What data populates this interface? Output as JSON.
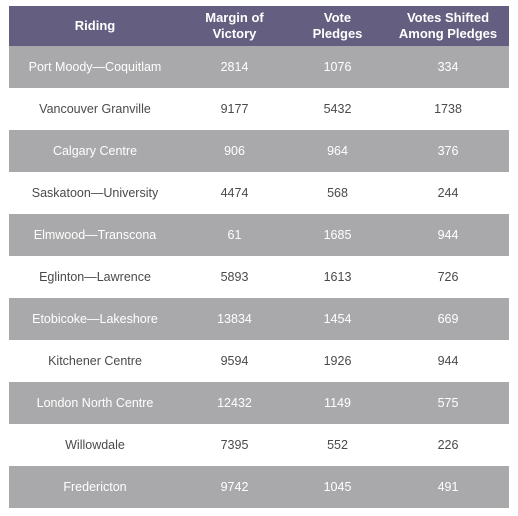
{
  "table": {
    "headers": [
      "Riding",
      "Margin of\nVictory",
      "Vote\nPledges",
      "Votes Shifted\nAmong Pledges"
    ],
    "rows": [
      [
        "Port Moody—Coquitlam",
        "2814",
        "1076",
        "334"
      ],
      [
        "Vancouver Granville",
        "9177",
        "5432",
        "1738"
      ],
      [
        "Calgary Centre",
        "906",
        "964",
        "376"
      ],
      [
        "Saskatoon—University",
        "4474",
        "568",
        "244"
      ],
      [
        "Elmwood—Transcona",
        "61",
        "1685",
        "944"
      ],
      [
        "Eglinton—Lawrence",
        "5893",
        "1613",
        "726"
      ],
      [
        "Etobicoke—Lakeshore",
        "13834",
        "1454",
        "669"
      ],
      [
        "Kitchener Centre",
        "9594",
        "1926",
        "944"
      ],
      [
        "London North Centre",
        "12432",
        "1149",
        "575"
      ],
      [
        "Willowdale",
        "7395",
        "552",
        "226"
      ],
      [
        "Fredericton",
        "9742",
        "1045",
        "491"
      ]
    ]
  },
  "colors": {
    "header_bg": "#645e80",
    "shaded_row_bg": "#a9a9ab",
    "plain_row_bg": "#ffffff",
    "plain_text": "#4a4a4a"
  }
}
